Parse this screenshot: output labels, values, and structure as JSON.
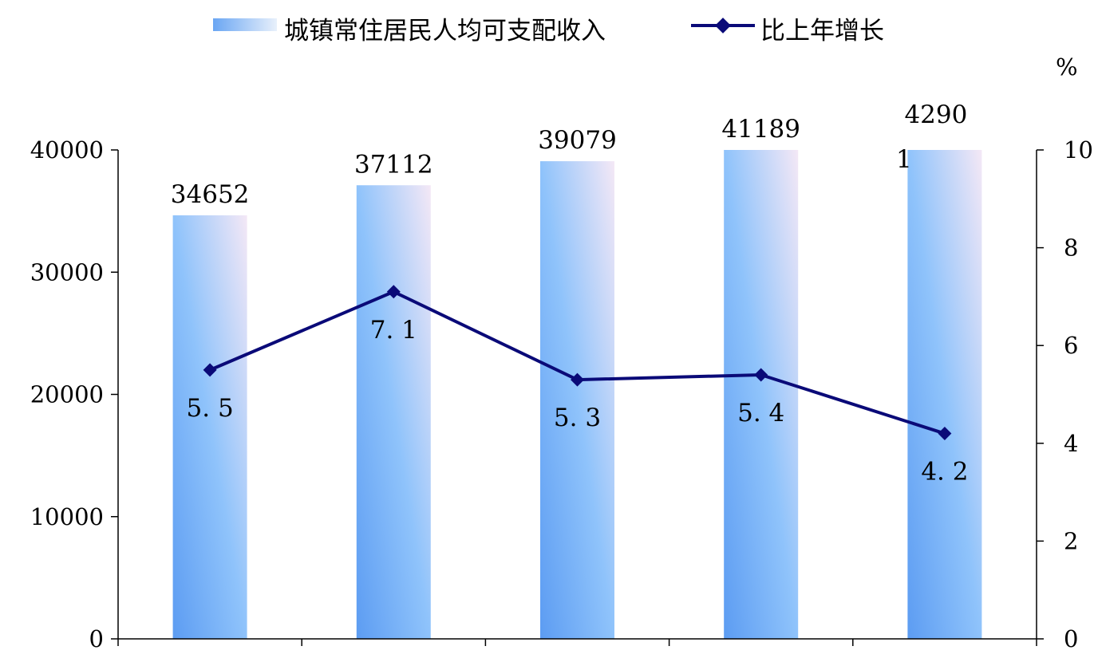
{
  "chart_data": {
    "type": "bar",
    "categories": [
      "",
      "",
      "",
      "",
      ""
    ],
    "series": [
      {
        "name": "城镇常住居民人均可支配收入",
        "type": "bar",
        "axis": "left",
        "values": [
          34652,
          37112,
          39079,
          41189,
          42901
        ],
        "labels": [
          "34652",
          "37112",
          "39079",
          "41189",
          "4290\n1"
        ],
        "color": "#7fb8f5"
      },
      {
        "name": "比上年增长",
        "type": "line",
        "axis": "right",
        "values": [
          5.5,
          7.1,
          5.3,
          5.4,
          4.2
        ],
        "labels": [
          "5. 5",
          "7. 1",
          "5. 3",
          "5. 4",
          "4. 2"
        ],
        "color": "#0a0a78"
      }
    ],
    "ylim_left": [
      0,
      40000
    ],
    "yticks_left": [
      "0",
      "10000",
      "20000",
      "30000",
      "40000"
    ],
    "ylim_right": [
      0,
      10
    ],
    "yticks_right": [
      "0",
      "2",
      "4",
      "6",
      "8",
      "10"
    ],
    "ylabel_right": "%",
    "legend_position": "top-center",
    "grid": false
  }
}
